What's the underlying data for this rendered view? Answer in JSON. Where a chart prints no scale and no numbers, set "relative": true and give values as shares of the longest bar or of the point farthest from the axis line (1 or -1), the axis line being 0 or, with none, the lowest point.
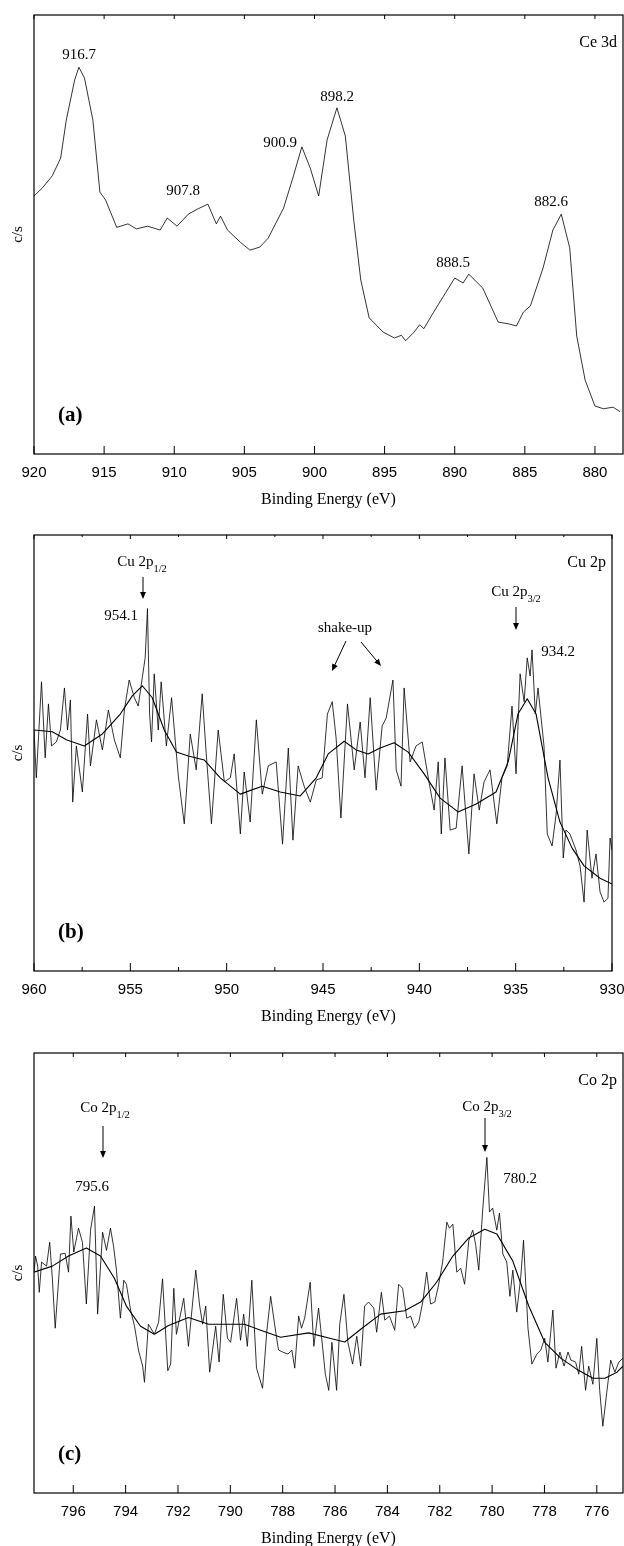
{
  "chart_data": [
    {
      "type": "line",
      "relative": true,
      "xlabel": "Binding Energy (eV)",
      "ylabel": "c/s",
      "xlim": [
        920,
        878
      ],
      "xticks": [
        920,
        915,
        910,
        905,
        900,
        895,
        890,
        885,
        880
      ],
      "series": [
        {
          "color": "#000000",
          "x": [
            920,
            919.4,
            918.7,
            918.1,
            917.7,
            917.1,
            916.8,
            916.4,
            915.8,
            915.3,
            914.9,
            914.1,
            913.3,
            912.7,
            911.9,
            911.0,
            910.5,
            909.8,
            909.0,
            908.3,
            907.6,
            907.0,
            906.7,
            906.2,
            905.3,
            904.6,
            903.9,
            903.3,
            902.2,
            901.5,
            900.9,
            900.3,
            899.7,
            899.1,
            898.4,
            897.8,
            897.2,
            896.7,
            896.1,
            895.1,
            894.3,
            893.8,
            893.5,
            892.9,
            892.5,
            892.2,
            891.5,
            890.8,
            890.0,
            889.4,
            889.0,
            888.0,
            886.9,
            886.1,
            885.6,
            885.1,
            884.6,
            883.7,
            883.0,
            882.4,
            881.8,
            881.3,
            880.7,
            880.0,
            879.4,
            878.7,
            878.2
          ],
          "values": [
            0.667,
            0.688,
            0.719,
            0.765,
            0.863,
            0.967,
            1,
            0.972,
            0.863,
            0.677,
            0.657,
            0.586,
            0.595,
            0.582,
            0.589,
            0.579,
            0.61,
            0.589,
            0.62,
            0.634,
            0.646,
            0.595,
            0.615,
            0.579,
            0.548,
            0.527,
            0.535,
            0.558,
            0.636,
            0.719,
            0.794,
            0.739,
            0.667,
            0.812,
            0.895,
            0.822,
            0.605,
            0.45,
            0.352,
            0.315,
            0.3,
            0.307,
            0.293,
            0.315,
            0.334,
            0.324,
            0.367,
            0.408,
            0.455,
            0.442,
            0.465,
            0.429,
            0.341,
            0.336,
            0.331,
            0.367,
            0.383,
            0.481,
            0.579,
            0.62,
            0.533,
            0.305,
            0.191,
            0.124,
            0.117,
            0.121,
            0.109
          ]
        }
      ],
      "annotations": [
        "Ce 3d",
        "(a)",
        "916.7",
        "907.8",
        "900.9",
        "898.2",
        "888.5",
        "882.6"
      ]
    },
    {
      "type": "line",
      "relative": true,
      "xlabel": "Binding Energy (eV)",
      "ylabel": "c/s",
      "xlim": [
        960,
        930
      ],
      "xticks": [
        960,
        {
          "value": 957.5,
          "label": null
        },
        955,
        {
          "value": 952.5,
          "label": null
        },
        950,
        {
          "value": 947.5,
          "label": null
        },
        945,
        {
          "value": 942.5,
          "label": null
        },
        940,
        {
          "value": 937.5,
          "label": null
        },
        935,
        {
          "value": 932.5,
          "label": null
        },
        930
      ],
      "series": [
        {
          "color": "#000000",
          "x": [
            960.0,
            959.88,
            959.61,
            959.42,
            959.25,
            959.09,
            958.84,
            958.63,
            958.42,
            958.26,
            958.11,
            957.99,
            957.8,
            957.49,
            957.22,
            957.07,
            956.76,
            956.45,
            956.14,
            955.83,
            955.52,
            955.31,
            955.06,
            954.79,
            954.59,
            954.38,
            954.23,
            954.11,
            954.0,
            953.9,
            953.76,
            953.55,
            953.4,
            953.13,
            952.86,
            952.51,
            952.2,
            951.89,
            951.58,
            951.27,
            951.06,
            950.79,
            950.44,
            950.12,
            949.81,
            949.61,
            949.29,
            949.09,
            948.78,
            948.46,
            948.15,
            947.84,
            947.43,
            947.1,
            946.8,
            946.56,
            946.29,
            945.98,
            945.66,
            945.35,
            945.04,
            944.77,
            944.52,
            944.32,
            944.07,
            943.73,
            943.38,
            943.07,
            942.82,
            942.55,
            942.24,
            941.93,
            941.72,
            941.37,
            941.2,
            940.95,
            940.79,
            940.48,
            940.17,
            939.85,
            939.5,
            939.23,
            939.02,
            938.86,
            938.67,
            938.4,
            938.09,
            937.78,
            937.43,
            937.16,
            936.89,
            936.64,
            936.33,
            935.98,
            935.71,
            935.44,
            935.19,
            934.98,
            934.77,
            934.56,
            934.4,
            934.25,
            934.15,
            933.98,
            933.84,
            933.53,
            933.36,
            933.11,
            932.9,
            932.7,
            932.53,
            932.39,
            932.18,
            931.87,
            931.66,
            931.45,
            931.29,
            931.04,
            930.83,
            930.62,
            930.41,
            930.21,
            930.1,
            930.0
          ],
          "values": [
            0.665,
            0.533,
            0.798,
            0.588,
            0.737,
            0.621,
            0.632,
            0.665,
            0.781,
            0.665,
            0.748,
            0.466,
            0.621,
            0.494,
            0.709,
            0.566,
            0.693,
            0.61,
            0.72,
            0.638,
            0.588,
            0.72,
            0.803,
            0.754,
            0.731,
            0.809,
            0.864,
            1,
            0.709,
            0.632,
            0.82,
            0.665,
            0.798,
            0.621,
            0.754,
            0.538,
            0.406,
            0.654,
            0.555,
            0.765,
            0.599,
            0.406,
            0.665,
            0.522,
            0.533,
            0.599,
            0.378,
            0.549,
            0.411,
            0.693,
            0.488,
            0.566,
            0.577,
            0.35,
            0.615,
            0.361,
            0.566,
            0.51,
            0.466,
            0.527,
            0.533,
            0.709,
            0.743,
            0.643,
            0.422,
            0.737,
            0.555,
            0.687,
            0.533,
            0.754,
            0.499,
            0.676,
            0.698,
            0.803,
            0.555,
            0.51,
            0.781,
            0.577,
            0.621,
            0.632,
            0.522,
            0.444,
            0.577,
            0.378,
            0.588,
            0.389,
            0.394,
            0.566,
            0.323,
            0.544,
            0.444,
            0.522,
            0.555,
            0.406,
            0.533,
            0.566,
            0.731,
            0.544,
            0.82,
            0.743,
            0.864,
            0.814,
            0.886,
            0.709,
            0.781,
            0.621,
            0.378,
            0.345,
            0.433,
            0.582,
            0.312,
            0.389,
            0.378,
            0.334,
            0.29,
            0.19,
            0.389,
            0.256,
            0.323,
            0.218,
            0.19,
            0.201,
            0.367,
            0.334
          ]
        },
        {
          "color": "#000000",
          "x": [
            960.0,
            959.05,
            958.32,
            957.39,
            956.45,
            955.52,
            954.9,
            954.38,
            953.86,
            953.24,
            952.61,
            951.99,
            951.16,
            950.33,
            949.29,
            948.15,
            947.22,
            946.18,
            945.35,
            944.73,
            943.9,
            943.28,
            942.66,
            942.03,
            941.31,
            940.58,
            939.75,
            938.92,
            937.99,
            937.05,
            936.02,
            935.39,
            934.88,
            934.4,
            933.94,
            933.32,
            932.7,
            932.07,
            931.45,
            930.62,
            930.0
          ],
          "values": [
            0.665,
            0.66,
            0.638,
            0.621,
            0.654,
            0.709,
            0.759,
            0.787,
            0.754,
            0.665,
            0.604,
            0.593,
            0.582,
            0.533,
            0.488,
            0.51,
            0.494,
            0.483,
            0.533,
            0.599,
            0.634,
            0.61,
            0.599,
            0.615,
            0.63,
            0.604,
            0.544,
            0.477,
            0.439,
            0.461,
            0.494,
            0.577,
            0.709,
            0.751,
            0.709,
            0.533,
            0.411,
            0.339,
            0.29,
            0.256,
            0.24
          ]
        }
      ],
      "annotations": [
        "Cu 2p",
        "(b)",
        "Cu 2p$_{1/2}$",
        "954.1",
        "shake-up",
        "Cu 2p$_{3/2}$",
        "934.2"
      ]
    },
    {
      "type": "line",
      "relative": true,
      "xlabel": "Binding Energy (eV)",
      "ylabel": "c/s",
      "xlim": [
        797.5,
        775
      ],
      "xticks": [
        796,
        794,
        792,
        790,
        788,
        786,
        784,
        782,
        780,
        778,
        776
      ],
      "series": [
        {
          "color": "#000000",
          "x": [
            797.5,
            797.44,
            797.36,
            797.3,
            797.21,
            797.02,
            796.9,
            796.8,
            796.69,
            796.49,
            796.31,
            796.18,
            796.09,
            795.98,
            795.8,
            795.65,
            795.5,
            795.34,
            795.19,
            795.07,
            794.88,
            794.73,
            794.58,
            794.46,
            794.35,
            794.2,
            794.07,
            793.97,
            793.81,
            793.66,
            793.51,
            793.35,
            793.28,
            793.13,
            792.9,
            792.74,
            792.59,
            792.39,
            792.28,
            792.16,
            792.06,
            791.78,
            791.6,
            791.32,
            791.17,
            791.06,
            790.94,
            790.79,
            790.56,
            790.43,
            790.27,
            790.11,
            789.99,
            789.76,
            789.61,
            789.49,
            789.35,
            789.18,
            789.0,
            788.77,
            788.61,
            788.46,
            788.31,
            788.16,
            788.0,
            787.8,
            787.65,
            787.54,
            787.39,
            787.28,
            787.16,
            786.95,
            786.81,
            786.63,
            786.55,
            786.37,
            786.24,
            786.12,
            785.94,
            785.82,
            785.66,
            785.51,
            785.33,
            785.17,
            785.02,
            784.87,
            784.72,
            784.52,
            784.41,
            784.23,
            784.1,
            783.92,
            783.72,
            783.57,
            783.42,
            783.26,
            783.11,
            782.96,
            782.8,
            782.65,
            782.5,
            782.35,
            782.19,
            782.04,
            781.89,
            781.73,
            781.63,
            781.5,
            781.35,
            781.2,
            781.05,
            780.89,
            780.74,
            780.63,
            780.51,
            780.36,
            780.2,
            780.1,
            779.98,
            779.82,
            779.72,
            779.59,
            779.44,
            779.32,
            779.21,
            779.06,
            778.91,
            778.8,
            778.63,
            778.48,
            778.29,
            778.14,
            777.99,
            777.87,
            777.68,
            777.56,
            777.41,
            777.25,
            777.1,
            776.99,
            776.81,
            776.69,
            776.58,
            776.43,
            776.31,
            776.15,
            776.0,
            775.89,
            775.77,
            775.62,
            775.47,
            775.31,
            775.16,
            775.0
          ],
          "values": [
            0.658,
            0.706,
            0.676,
            0.598,
            0.688,
            0.676,
            0.747,
            0.64,
            0.491,
            0.712,
            0.714,
            0.658,
            0.825,
            0.718,
            0.789,
            0.747,
            0.563,
            0.783,
            0.855,
            0.533,
            0.777,
            0.723,
            0.789,
            0.735,
            0.664,
            0.521,
            0.634,
            0.622,
            0.545,
            0.497,
            0.426,
            0.378,
            0.33,
            0.503,
            0.473,
            0.509,
            0.638,
            0.364,
            0.384,
            0.61,
            0.473,
            0.58,
            0.437,
            0.664,
            0.557,
            0.503,
            0.557,
            0.36,
            0.497,
            0.39,
            0.592,
            0.461,
            0.449,
            0.58,
            0.455,
            0.533,
            0.437,
            0.634,
            0.372,
            0.312,
            0.479,
            0.586,
            0.503,
            0.426,
            0.42,
            0.414,
            0.426,
            0.372,
            0.527,
            0.491,
            0.521,
            0.628,
            0.437,
            0.551,
            0.491,
            0.354,
            0.306,
            0.449,
            0.306,
            0.503,
            0.592,
            0.449,
            0.384,
            0.467,
            0.378,
            0.557,
            0.569,
            0.551,
            0.479,
            0.598,
            0.515,
            0.527,
            0.485,
            0.622,
            0.61,
            0.521,
            0.527,
            0.491,
            0.509,
            0.569,
            0.658,
            0.563,
            0.569,
            0.622,
            0.688,
            0.807,
            0.789,
            0.801,
            0.658,
            0.67,
            0.622,
            0.753,
            0.783,
            0.741,
            0.664,
            0.843,
            1,
            0.837,
            0.849,
            0.783,
            0.834,
            0.712,
            0.688,
            0.586,
            0.664,
            0.539,
            0.64,
            0.753,
            0.491,
            0.384,
            0.414,
            0.426,
            0.461,
            0.39,
            0.545,
            0.372,
            0.42,
            0.378,
            0.42,
            0.396,
            0.39,
            0.354,
            0.437,
            0.306,
            0.378,
            0.324,
            0.461,
            0.306,
            0.199,
            0.3,
            0.396,
            0.36,
            0.39,
            0.402
          ]
        },
        {
          "color": "#000000",
          "x": [
            797.5,
            796.8,
            796.18,
            795.5,
            794.96,
            794.43,
            793.97,
            793.43,
            792.9,
            792.36,
            791.6,
            790.83,
            790.07,
            789.46,
            788.84,
            788.08,
            787.01,
            786.24,
            785.63,
            785.02,
            784.26,
            783.34,
            782.73,
            782.12,
            781.5,
            780.89,
            780.28,
            779.82,
            779.21,
            778.6,
            777.99,
            777.38,
            776.77,
            776.15,
            775.69,
            775.23,
            775.0
          ],
          "values": [
            0.658,
            0.676,
            0.706,
            0.73,
            0.706,
            0.64,
            0.557,
            0.497,
            0.473,
            0.499,
            0.523,
            0.503,
            0.503,
            0.503,
            0.485,
            0.464,
            0.477,
            0.462,
            0.45,
            0.488,
            0.533,
            0.543,
            0.569,
            0.628,
            0.706,
            0.76,
            0.786,
            0.772,
            0.691,
            0.557,
            0.449,
            0.402,
            0.369,
            0.342,
            0.342,
            0.36,
            0.378
          ]
        }
      ],
      "annotations": [
        "Co 2p",
        "(c)",
        "Co 2p$_{1/2}$",
        "795.6",
        "Co 2p$_{3/2}$",
        "780.2"
      ]
    }
  ]
}
